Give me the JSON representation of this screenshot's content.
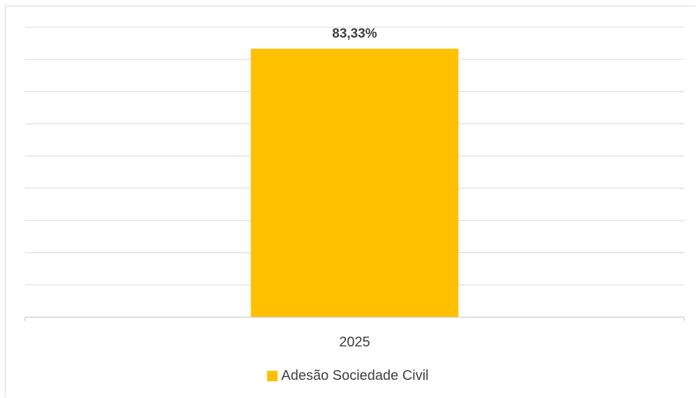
{
  "chart_data": {
    "type": "bar",
    "categories": [
      "2025"
    ],
    "series": [
      {
        "name": "Adesão Sociedade Civil",
        "values": [
          83.33
        ],
        "color": "#FFC000"
      }
    ],
    "data_labels": [
      "83,33%"
    ],
    "ylim": [
      0,
      90
    ],
    "gridlines": true,
    "legend_position": "bottom"
  },
  "colors": {
    "grid": "#d9d9d9",
    "axis": "#bfbfbf",
    "text": "#404040",
    "label": "#404040"
  }
}
